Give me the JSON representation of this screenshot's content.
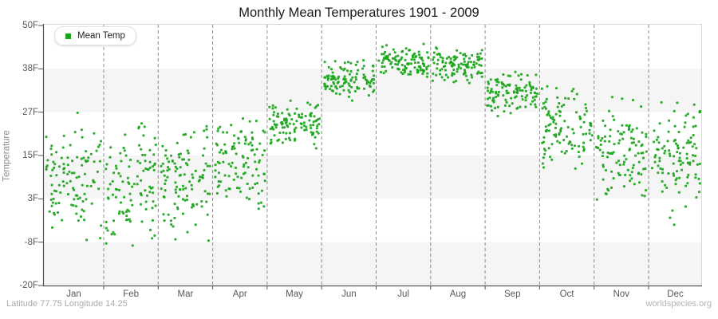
{
  "title": "Monthly Mean Temperatures 1901 - 2009",
  "legend": {
    "label": "Mean Temp"
  },
  "y_axis": {
    "label": "Temperature",
    "tick_labels": [
      "50F",
      "38F",
      "27F",
      "15F",
      "3F",
      "-8F",
      "-20F"
    ]
  },
  "x_axis": {
    "month_labels": [
      "Jan",
      "Feb",
      "Mar",
      "Apr",
      "May",
      "Jun",
      "Jul",
      "Aug",
      "Sep",
      "Oct",
      "Nov",
      "Dec"
    ]
  },
  "footer": {
    "left": "Latitude 77.75 Longitude 14.25",
    "right": "worldspecies.org"
  },
  "colors": {
    "point_green": "#1aa51a",
    "band_gray": "#f5f5f5",
    "axis_dark": "#555555",
    "grid_dashed": "#8c8c8c",
    "plot_border_light": "#d9d9d9"
  },
  "chart_data": {
    "type": "scatter",
    "title": "Monthly Mean Temperatures 1901 - 2009",
    "series": [
      {
        "name": "Mean Temp",
        "color": "#1aa51a"
      }
    ],
    "x_categories": [
      "Jan",
      "Feb",
      "Mar",
      "Apr",
      "May",
      "Jun",
      "Jul",
      "Aug",
      "Sep",
      "Oct",
      "Nov",
      "Dec"
    ],
    "ylabel": "Temperature",
    "y_unit": "F",
    "ylim": [
      -20,
      50
    ],
    "y_tick_values_f": [
      50,
      38,
      27,
      15,
      3,
      -8,
      -20
    ],
    "years_range": "1901 - 2009",
    "points_per_month": 109,
    "monthly_stats_f": [
      {
        "month": "Jan",
        "mean": 9.5,
        "sd": 8.0,
        "min": -10.5,
        "max": 28.0
      },
      {
        "month": "Feb",
        "mean": 7.0,
        "sd": 8.0,
        "min": -12.5,
        "max": 24.5
      },
      {
        "month": "Mar",
        "mean": 7.5,
        "sd": 7.5,
        "min": -11.0,
        "max": 23.0
      },
      {
        "month": "Apr",
        "mean": 12.0,
        "sd": 6.0,
        "min": 0.0,
        "max": 29.0
      },
      {
        "month": "May",
        "mean": 23.5,
        "sd": 3.2,
        "min": 16.5,
        "max": 30.0
      },
      {
        "month": "Jun",
        "mean": 35.5,
        "sd": 2.6,
        "min": 29.5,
        "max": 42.0
      },
      {
        "month": "Jul",
        "mean": 40.2,
        "sd": 2.2,
        "min": 35.5,
        "max": 45.3
      },
      {
        "month": "Aug",
        "mean": 39.2,
        "sd": 2.3,
        "min": 34.0,
        "max": 44.5
      },
      {
        "month": "Sep",
        "mean": 32.0,
        "sd": 2.6,
        "min": 25.5,
        "max": 37.8
      },
      {
        "month": "Oct",
        "mean": 21.5,
        "sd": 5.0,
        "min": 3.0,
        "max": 35.0
      },
      {
        "month": "Nov",
        "mean": 16.5,
        "sd": 6.0,
        "min": -2.0,
        "max": 31.5
      },
      {
        "month": "Dec",
        "mean": 14.5,
        "sd": 7.0,
        "min": -8.0,
        "max": 33.0
      }
    ],
    "legend_position": "top-left",
    "grid": "vertical dashed lines at month boundaries",
    "background_bands": "alternating horizontal white / #f5f5f5 stripes per y tick interval"
  }
}
